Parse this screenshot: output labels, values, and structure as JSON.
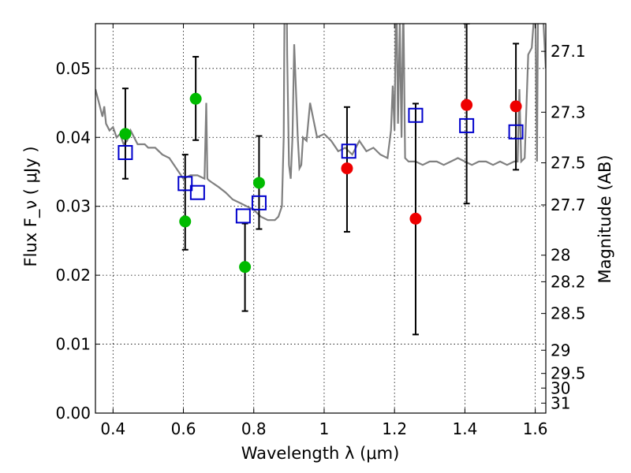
{
  "chart_data": {
    "type": "scatter",
    "xlabel": "Wavelength  λ (μm)",
    "ylabel": "Flux  F_ν ( μJy )",
    "y2label": "Magnitude (AB)",
    "xlim": [
      0.35,
      1.63
    ],
    "ylim": [
      0.0,
      0.0565
    ],
    "grid": true,
    "xticks": [
      0.4,
      0.6,
      0.8,
      1.0,
      1.2,
      1.4,
      1.6
    ],
    "xtick_labels": [
      "0.4",
      "0.6",
      "0.8",
      "1",
      "1.2",
      "1.4",
      "1.6"
    ],
    "yticks": [
      0.0,
      0.01,
      0.02,
      0.03,
      0.04,
      0.05
    ],
    "ytick_labels": [
      "0.00",
      "0.01",
      "0.02",
      "0.03",
      "0.04",
      "0.05"
    ],
    "y2_tick_labels": [
      "27.1",
      "27.3",
      "27.5",
      "27.7",
      "28",
      "28.2",
      "28.5",
      "29",
      "29.5",
      "30",
      "31"
    ],
    "colors": {
      "model": "#808080",
      "green_points": "#00bb00",
      "red_points": "#ee0000",
      "model_squares": "#0000cc",
      "error_bars": "#000000"
    },
    "model_spectrum": {
      "x": [
        0.35,
        0.36,
        0.37,
        0.375,
        0.38,
        0.39,
        0.4,
        0.41,
        0.42,
        0.43,
        0.44,
        0.45,
        0.47,
        0.49,
        0.5,
        0.52,
        0.54,
        0.56,
        0.58,
        0.6,
        0.62,
        0.64,
        0.66,
        0.665,
        0.668,
        0.672,
        0.68,
        0.7,
        0.72,
        0.74,
        0.76,
        0.78,
        0.8,
        0.82,
        0.84,
        0.86,
        0.87,
        0.88,
        0.885,
        0.89,
        0.895,
        0.9,
        0.905,
        0.91,
        0.915,
        0.925,
        0.93,
        0.935,
        0.94,
        0.95,
        0.96,
        0.98,
        1.0,
        1.02,
        1.04,
        1.06,
        1.08,
        1.1,
        1.12,
        1.14,
        1.16,
        1.18,
        1.19,
        1.195,
        1.2,
        1.205,
        1.21,
        1.215,
        1.22,
        1.225,
        1.23,
        1.24,
        1.26,
        1.28,
        1.3,
        1.32,
        1.34,
        1.36,
        1.38,
        1.4,
        1.42,
        1.44,
        1.46,
        1.48,
        1.5,
        1.52,
        1.54,
        1.55,
        1.555,
        1.56,
        1.57,
        1.58,
        1.59,
        1.6,
        1.605,
        1.61,
        1.62,
        1.63
      ],
      "y": [
        0.047,
        0.045,
        0.043,
        0.0445,
        0.042,
        0.041,
        0.0415,
        0.04,
        0.0405,
        0.039,
        0.0395,
        0.041,
        0.039,
        0.039,
        0.0385,
        0.0385,
        0.0375,
        0.037,
        0.0355,
        0.034,
        0.0345,
        0.0345,
        0.034,
        0.045,
        0.034,
        0.0338,
        0.0335,
        0.0328,
        0.032,
        0.031,
        0.0305,
        0.03,
        0.0295,
        0.0285,
        0.028,
        0.028,
        0.0285,
        0.03,
        0.04,
        0.08,
        0.052,
        0.036,
        0.034,
        0.04,
        0.0535,
        0.04,
        0.0355,
        0.036,
        0.04,
        0.0395,
        0.045,
        0.04,
        0.0405,
        0.0395,
        0.038,
        0.0385,
        0.0375,
        0.0395,
        0.038,
        0.0385,
        0.0375,
        0.037,
        0.041,
        0.0475,
        0.041,
        0.063,
        0.042,
        0.0565,
        0.04,
        0.06,
        0.037,
        0.0365,
        0.0365,
        0.036,
        0.0365,
        0.0365,
        0.036,
        0.0365,
        0.037,
        0.0365,
        0.036,
        0.0365,
        0.0365,
        0.036,
        0.0365,
        0.036,
        0.0365,
        0.0365,
        0.047,
        0.0365,
        0.037,
        0.052,
        0.053,
        0.06,
        0.0365,
        0.075,
        0.06,
        0.05
      ],
      "source_label": ""
    },
    "green_points": [
      {
        "x": 0.435,
        "y": 0.0405
      },
      {
        "x": 0.605,
        "y": 0.0278
      },
      {
        "x": 0.635,
        "y": 0.0456
      },
      {
        "x": 0.775,
        "y": 0.0212
      },
      {
        "x": 0.815,
        "y": 0.0334
      }
    ],
    "red_points": [
      {
        "x": 1.065,
        "y": 0.0355
      },
      {
        "x": 1.26,
        "y": 0.0282
      },
      {
        "x": 1.405,
        "y": 0.0447
      },
      {
        "x": 1.545,
        "y": 0.0445
      }
    ],
    "model_squares": [
      {
        "x": 0.435,
        "y": 0.0378
      },
      {
        "x": 0.605,
        "y": 0.0333
      },
      {
        "x": 0.64,
        "y": 0.032
      },
      {
        "x": 0.77,
        "y": 0.0286
      },
      {
        "x": 0.815,
        "y": 0.0305
      },
      {
        "x": 1.07,
        "y": 0.038
      },
      {
        "x": 1.26,
        "y": 0.0432
      },
      {
        "x": 1.405,
        "y": 0.0417
      },
      {
        "x": 1.545,
        "y": 0.0408
      }
    ],
    "error_bars": [
      {
        "x": 0.435,
        "low": 0.034,
        "high": 0.0471
      },
      {
        "x": 0.605,
        "low": 0.0237,
        "high": 0.0375
      },
      {
        "x": 0.635,
        "low": 0.0396,
        "high": 0.0517
      },
      {
        "x": 0.775,
        "low": 0.0148,
        "high": 0.0275
      },
      {
        "x": 0.815,
        "low": 0.0267,
        "high": 0.0402
      },
      {
        "x": 1.065,
        "low": 0.0263,
        "high": 0.0444
      },
      {
        "x": 1.26,
        "low": 0.0114,
        "high": 0.0449
      },
      {
        "x": 1.405,
        "low": 0.0304,
        "high": 0.0565
      },
      {
        "x": 1.545,
        "low": 0.0353,
        "high": 0.0536
      }
    ]
  }
}
